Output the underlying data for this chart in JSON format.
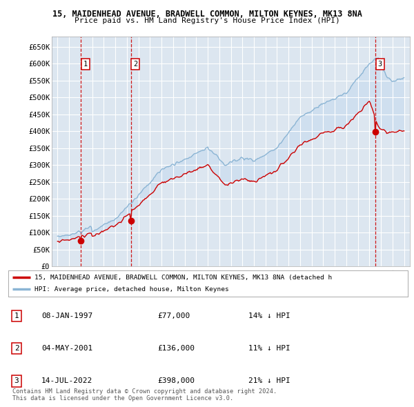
{
  "title": "15, MAIDENHEAD AVENUE, BRADWELL COMMON, MILTON KEYNES, MK13 8NA",
  "subtitle": "Price paid vs. HM Land Registry's House Price Index (HPI)",
  "background_color": "#ffffff",
  "plot_bg_color": "#dce6f0",
  "grid_color": "#ffffff",
  "sale_dates": [
    1997.03,
    2001.34,
    2022.54
  ],
  "sale_prices": [
    77000,
    136000,
    398000
  ],
  "sale_labels": [
    "1",
    "2",
    "3"
  ],
  "hpi_line_color": "#8ab4d4",
  "sale_line_color": "#cc0000",
  "dashed_line_color": "#cc0000",
  "legend_entries": [
    "15, MAIDENHEAD AVENUE, BRADWELL COMMON, MILTON KEYNES, MK13 8NA (detached h",
    "HPI: Average price, detached house, Milton Keynes"
  ],
  "table_entries": [
    {
      "label": "1",
      "date": "08-JAN-1997",
      "price": "£77,000",
      "note": "14% ↓ HPI"
    },
    {
      "label": "2",
      "date": "04-MAY-2001",
      "price": "£136,000",
      "note": "11% ↓ HPI"
    },
    {
      "label": "3",
      "date": "14-JUL-2022",
      "price": "£398,000",
      "note": "21% ↓ HPI"
    }
  ],
  "footer": "Contains HM Land Registry data © Crown copyright and database right 2024.\nThis data is licensed under the Open Government Licence v3.0.",
  "ylim": [
    0,
    680000
  ],
  "yticks": [
    0,
    50000,
    100000,
    150000,
    200000,
    250000,
    300000,
    350000,
    400000,
    450000,
    500000,
    550000,
    600000,
    650000
  ],
  "ytick_labels": [
    "£0",
    "£50K",
    "£100K",
    "£150K",
    "£200K",
    "£250K",
    "£300K",
    "£350K",
    "£400K",
    "£450K",
    "£500K",
    "£550K",
    "£600K",
    "£650K"
  ],
  "xlim": [
    1994.5,
    2025.5
  ],
  "xticks": [
    1995,
    1996,
    1997,
    1998,
    1999,
    2000,
    2001,
    2002,
    2003,
    2004,
    2005,
    2006,
    2007,
    2008,
    2009,
    2010,
    2011,
    2012,
    2013,
    2014,
    2015,
    2016,
    2017,
    2018,
    2019,
    2020,
    2021,
    2022,
    2023,
    2024,
    2025
  ]
}
